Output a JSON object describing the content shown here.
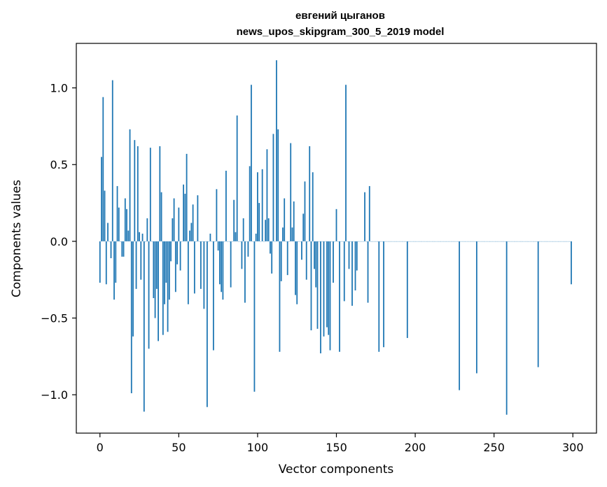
{
  "chart_data": {
    "type": "bar",
    "title": "евгений цыганов\nnews_upos_skipgram_300_5_2019 model",
    "xlabel": "Vector components",
    "ylabel": "Components values",
    "xlim": [
      -15,
      315
    ],
    "ylim": [
      -1.25,
      1.29
    ],
    "xticks": [
      0,
      50,
      100,
      150,
      200,
      250,
      300
    ],
    "xtick_labels": [
      "0",
      "50",
      "100",
      "150",
      "200",
      "250",
      "300"
    ],
    "yticks": [
      -1.0,
      -0.5,
      0.0,
      0.5,
      1.0
    ],
    "ytick_labels": [
      "−1.0",
      "−0.5",
      "0.0",
      "0.5",
      "1.0"
    ],
    "grid": false,
    "bar_color": "#1f77b4",
    "values": [
      -0.27,
      0.55,
      0.94,
      0.33,
      -0.28,
      0.12,
      0.0,
      -0.11,
      1.05,
      -0.38,
      -0.27,
      0.36,
      0.22,
      0.0,
      -0.1,
      -0.1,
      0.28,
      0.21,
      0.07,
      0.73,
      -0.99,
      -0.62,
      0.66,
      -0.31,
      0.62,
      0.06,
      -0.25,
      0.05,
      -1.11,
      0.0,
      0.15,
      -0.7,
      0.61,
      0.0,
      -0.37,
      -0.5,
      -0.31,
      -0.65,
      0.62,
      0.32,
      -0.61,
      -0.41,
      -0.27,
      -0.59,
      -0.38,
      -0.13,
      0.15,
      0.28,
      -0.33,
      -0.15,
      0.22,
      -0.19,
      0.0,
      0.37,
      0.31,
      0.57,
      -0.41,
      0.07,
      0.12,
      0.24,
      -0.34,
      0.0,
      0.3,
      0.0,
      -0.31,
      0.0,
      -0.44,
      0.0,
      -1.08,
      0.0,
      0.05,
      0.0,
      -0.71,
      0.0,
      0.34,
      -0.06,
      -0.28,
      -0.33,
      -0.38,
      0.0,
      0.46,
      0.0,
      0.0,
      -0.3,
      0.0,
      0.27,
      0.06,
      0.82,
      0.0,
      0.0,
      -0.18,
      0.15,
      -0.4,
      0.0,
      -0.1,
      0.49,
      1.02,
      0.0,
      -0.98,
      0.05,
      0.45,
      0.25,
      0.0,
      0.47,
      0.0,
      0.14,
      0.6,
      0.15,
      -0.08,
      -0.21,
      0.7,
      0.0,
      1.18,
      0.73,
      -0.72,
      -0.26,
      0.09,
      0.28,
      0.0,
      -0.22,
      0.0,
      0.64,
      0.09,
      0.26,
      -0.35,
      -0.41,
      0.0,
      0.0,
      -0.12,
      0.18,
      0.39,
      -0.25,
      0.0,
      0.62,
      -0.58,
      0.45,
      -0.18,
      -0.3,
      -0.57,
      0.0,
      -0.73,
      0.0,
      -0.62,
      0.0,
      -0.56,
      -0.61,
      -0.71,
      0.0,
      -0.27,
      0.0,
      0.21,
      0.0,
      -0.72,
      0.0,
      0.0,
      -0.39,
      1.02,
      0.0,
      -0.18,
      0.0,
      -0.42,
      0.0,
      -0.32,
      -0.19,
      0.0,
      0.0,
      0.0,
      0.0,
      0.32,
      0.0,
      -0.4,
      0.36,
      0.0,
      0.0,
      0.0,
      0.0,
      0.0,
      -0.72,
      0.0,
      0.0,
      -0.69,
      0.0,
      0.0,
      0.0,
      0.0,
      0.0,
      0.0,
      0.0,
      0.0,
      0.0,
      0.0,
      0.0,
      0.0,
      0.0,
      0.0,
      -0.63,
      0.0,
      0.0,
      0.0,
      0.0,
      0.0,
      0.0,
      0.0,
      0.0,
      0.0,
      0.0,
      0.0,
      0.0,
      0.0,
      0.0,
      0.0,
      0.0,
      0.0,
      0.0,
      0.0,
      0.0,
      0.0,
      0.0,
      0.0,
      0.0,
      0.0,
      0.0,
      0.0,
      0.0,
      0.0,
      0.0,
      0.0,
      0.0,
      -0.97,
      0.0,
      0.0,
      0.0,
      0.0,
      0.0,
      0.0,
      0.0,
      0.0,
      0.0,
      0.0,
      -0.86,
      0.0,
      0.0,
      0.0,
      0.0,
      0.0,
      0.0,
      0.0,
      0.0,
      0.0,
      0.0,
      0.0,
      0.0,
      0.0,
      0.0,
      0.0,
      0.0,
      0.0,
      0.0,
      -1.13,
      0.0,
      0.0,
      0.0,
      0.0,
      0.0,
      0.0,
      0.0,
      0.0,
      0.0,
      0.0,
      0.0,
      0.0,
      0.0,
      0.0,
      0.0,
      0.0,
      0.0,
      0.0,
      0.0,
      -0.82,
      0.0,
      0.0,
      0.0,
      0.0,
      0.0,
      0.0,
      0.0,
      0.0,
      0.0,
      0.0,
      0.0,
      0.0,
      0.0,
      0.0,
      0.0,
      0.0,
      0.0,
      0.0,
      0.0,
      0.0,
      -0.28
    ]
  }
}
